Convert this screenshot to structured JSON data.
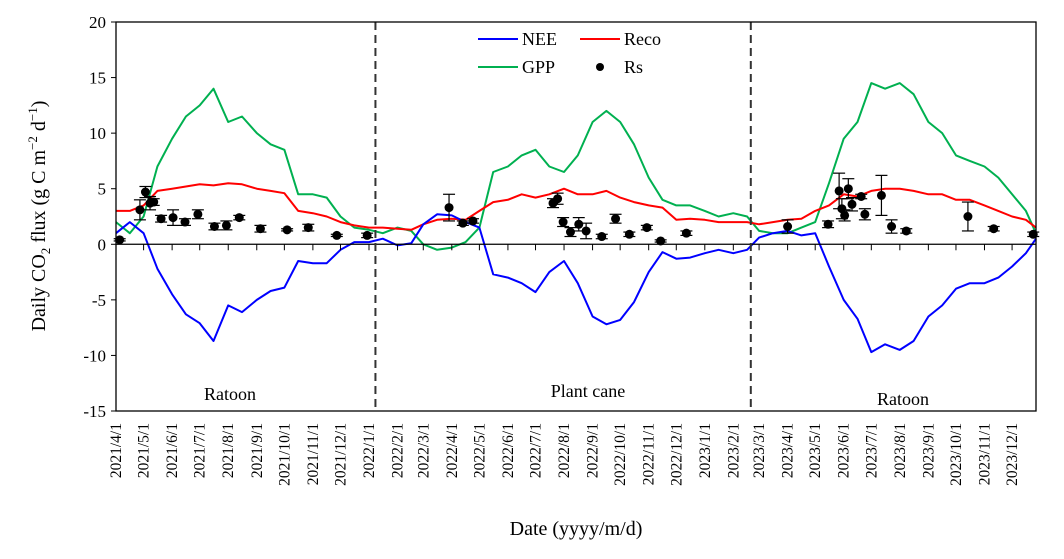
{
  "chart_data": {
    "type": "line",
    "xlabel": "Date (yyyy/m/d)",
    "ylabel": {
      "pre": "Daily CO",
      "sub": "2",
      "mid": " flux  (g C m",
      "sup1": "−2",
      "mid2": " d",
      "sup2": "−1",
      "post": ")"
    },
    "ylim": [
      -15,
      20
    ],
    "yticks": [
      -15,
      -10,
      -5,
      0,
      5,
      10,
      15,
      20
    ],
    "xlim": [
      "2021-04-01",
      "2023-12-27"
    ],
    "xticks": [
      "2021/4/1",
      "2021/5/1",
      "2021/6/1",
      "2021/7/1",
      "2021/8/1",
      "2021/9/1",
      "2021/10/1",
      "2021/11/1",
      "2021/12/1",
      "2022/1/1",
      "2022/2/1",
      "2022/3/1",
      "2022/4/1",
      "2022/5/1",
      "2022/6/1",
      "2022/7/1",
      "2022/8/1",
      "2022/9/1",
      "2022/10/1",
      "2022/11/1",
      "2022/12/1",
      "2023/1/1",
      "2023/2/1",
      "2023/3/1",
      "2023/4/1",
      "2023/5/1",
      "2023/6/1",
      "2023/7/1",
      "2023/8/1",
      "2023/9/1",
      "2023/10/1",
      "2023/11/1",
      "2023/12/1"
    ],
    "grid": false,
    "legend_position": "top-center",
    "zero_line": true,
    "season_dividers": [
      "2022-01-08",
      "2023-02-20"
    ],
    "season_labels": [
      "Ratoon",
      "Plant cane",
      "Ratoon"
    ],
    "x": [
      "2021-04-01",
      "2021-04-16",
      "2021-05-01",
      "2021-05-16",
      "2021-06-01",
      "2021-06-16",
      "2021-07-01",
      "2021-07-16",
      "2021-08-01",
      "2021-08-16",
      "2021-09-01",
      "2021-09-16",
      "2021-10-01",
      "2021-10-16",
      "2021-11-01",
      "2021-11-16",
      "2021-12-01",
      "2021-12-16",
      "2022-01-01",
      "2022-01-16",
      "2022-02-01",
      "2022-02-16",
      "2022-03-01",
      "2022-03-16",
      "2022-04-01",
      "2022-04-16",
      "2022-05-01",
      "2022-05-16",
      "2022-06-01",
      "2022-06-16",
      "2022-07-01",
      "2022-07-16",
      "2022-08-01",
      "2022-08-16",
      "2022-09-01",
      "2022-09-16",
      "2022-10-01",
      "2022-10-16",
      "2022-11-01",
      "2022-11-16",
      "2022-12-01",
      "2022-12-16",
      "2023-01-01",
      "2023-01-16",
      "2023-02-01",
      "2023-02-16",
      "2023-03-01",
      "2023-03-16",
      "2023-04-01",
      "2023-04-16",
      "2023-05-01",
      "2023-05-16",
      "2023-06-01",
      "2023-06-16",
      "2023-07-01",
      "2023-07-16",
      "2023-08-01",
      "2023-08-16",
      "2023-09-01",
      "2023-09-16",
      "2023-10-01",
      "2023-10-16",
      "2023-11-01",
      "2023-11-16",
      "2023-12-01",
      "2023-12-16",
      "2023-12-27"
    ],
    "series": [
      {
        "name": "NEE",
        "color": "#0000ff",
        "values": [
          1.0,
          2.0,
          1.0,
          -2.2,
          -4.5,
          -6.3,
          -7.1,
          -8.7,
          -5.5,
          -6.1,
          -5.0,
          -4.2,
          -3.9,
          -1.5,
          -1.7,
          -1.7,
          -0.5,
          0.2,
          0.2,
          0.5,
          -0.1,
          0.1,
          1.8,
          2.7,
          2.6,
          2.0,
          1.5,
          -2.7,
          -3.0,
          -3.5,
          -4.3,
          -2.5,
          -1.5,
          -3.5,
          -6.5,
          -7.2,
          -6.8,
          -5.2,
          -2.5,
          -0.7,
          -1.3,
          -1.2,
          -0.8,
          -0.5,
          -0.8,
          -0.5,
          0.6,
          1.0,
          1.2,
          0.8,
          1.0,
          -2.0,
          -5.0,
          -6.7,
          -9.7,
          -9.0,
          -9.5,
          -8.7,
          -6.5,
          -5.5,
          -4.0,
          -3.5,
          -3.5,
          -3.0,
          -2.0,
          -0.8,
          0.5
        ]
      },
      {
        "name": "Reco",
        "color": "#ff0000",
        "values": [
          3.0,
          3.0,
          3.5,
          4.8,
          5.0,
          5.2,
          5.4,
          5.3,
          5.5,
          5.4,
          5.0,
          4.8,
          4.6,
          3.0,
          2.8,
          2.5,
          2.0,
          1.7,
          1.5,
          1.5,
          1.4,
          1.3,
          1.8,
          2.2,
          2.3,
          2.2,
          3.0,
          3.8,
          4.0,
          4.5,
          4.2,
          4.5,
          5.0,
          4.5,
          4.5,
          4.8,
          4.2,
          3.8,
          3.5,
          3.3,
          2.2,
          2.3,
          2.2,
          2.0,
          2.0,
          2.0,
          1.8,
          2.0,
          2.2,
          2.3,
          3.0,
          3.5,
          4.5,
          4.3,
          4.8,
          5.0,
          5.0,
          4.8,
          4.5,
          4.5,
          4.0,
          4.0,
          3.5,
          3.0,
          2.5,
          2.2,
          1.5
        ]
      },
      {
        "name": "GPP",
        "color": "#00b050",
        "values": [
          2.0,
          1.0,
          2.5,
          7.0,
          9.5,
          11.5,
          12.5,
          14.0,
          11.0,
          11.5,
          10.0,
          9.0,
          8.5,
          4.5,
          4.5,
          4.2,
          2.5,
          1.5,
          1.3,
          1.0,
          1.5,
          1.2,
          0.0,
          -0.5,
          -0.3,
          0.2,
          1.5,
          6.5,
          7.0,
          8.0,
          8.5,
          7.0,
          6.5,
          8.0,
          11.0,
          12.0,
          11.0,
          9.0,
          6.0,
          4.0,
          3.5,
          3.5,
          3.0,
          2.5,
          2.8,
          2.5,
          1.2,
          1.0,
          1.0,
          1.5,
          2.0,
          5.5,
          9.5,
          11.0,
          14.5,
          14.0,
          14.5,
          13.5,
          11.0,
          10.0,
          8.0,
          7.5,
          7.0,
          6.0,
          4.5,
          3.0,
          1.0
        ]
      }
    ],
    "points": {
      "name": "Rs",
      "color": "#000000",
      "dates": [
        "2021-04-05",
        "2021-04-27",
        "2021-05-03",
        "2021-05-08",
        "2021-05-12",
        "2021-05-20",
        "2021-06-02",
        "2021-06-15",
        "2021-06-29",
        "2021-07-17",
        "2021-07-30",
        "2021-08-13",
        "2021-09-05",
        "2021-10-04",
        "2021-10-27",
        "2021-11-27",
        "2021-12-30",
        "2022-03-29",
        "2022-04-13",
        "2022-04-24",
        "2022-07-20",
        "2022-07-25",
        "2022-07-31",
        "2022-08-08",
        "2022-08-17",
        "2022-08-25",
        "2022-09-11",
        "2022-09-26",
        "2022-10-11",
        "2022-10-30",
        "2022-11-14",
        "2022-12-12",
        "2023-04-01",
        "2023-05-15",
        "2023-05-27",
        "2023-05-30",
        "2023-06-02",
        "2023-06-06",
        "2023-06-10",
        "2023-06-20",
        "2023-06-24",
        "2023-07-12",
        "2023-07-23",
        "2023-08-08",
        "2023-10-14",
        "2023-11-11",
        "2023-12-24"
      ],
      "values": [
        0.4,
        3.1,
        4.7,
        3.7,
        3.8,
        2.3,
        2.4,
        2.0,
        2.7,
        1.6,
        1.7,
        2.4,
        1.4,
        1.3,
        1.5,
        0.8,
        0.8,
        3.3,
        1.9,
        2.1,
        3.7,
        4.1,
        2.0,
        1.1,
        1.8,
        1.2,
        0.7,
        2.3,
        0.9,
        1.5,
        0.3,
        1.0,
        1.6,
        1.8,
        4.8,
        3.2,
        2.6,
        5.0,
        3.6,
        4.3,
        2.7,
        4.4,
        1.6,
        1.2,
        2.5,
        1.4,
        0.9
      ],
      "errors": [
        0.1,
        0.9,
        0.5,
        0.6,
        0.3,
        0.3,
        0.7,
        0.3,
        0.4,
        0.3,
        0.4,
        0.2,
        0.3,
        0.1,
        0.3,
        0.1,
        0.2,
        1.2,
        0.2,
        0.2,
        0.4,
        0.5,
        0.4,
        0.4,
        0.6,
        0.7,
        0.2,
        0.4,
        0.2,
        0.2,
        0.1,
        0.2,
        0.6,
        0.3,
        1.6,
        0.9,
        0.5,
        0.9,
        0.6,
        0.2,
        0.5,
        1.8,
        0.6,
        0.2,
        1.3,
        0.2,
        0.2
      ]
    }
  }
}
